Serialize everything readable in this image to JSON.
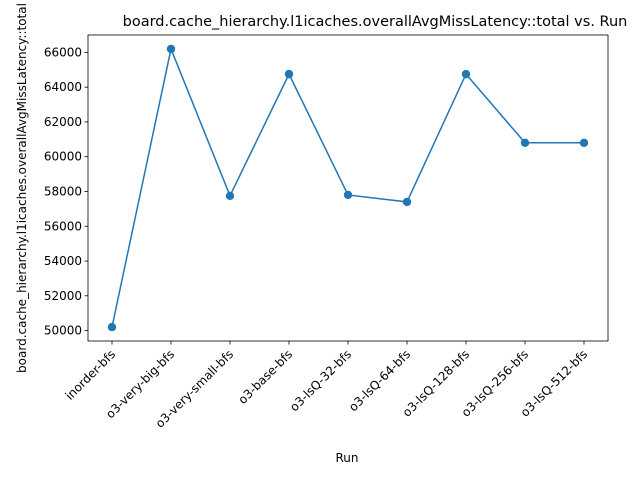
{
  "chart_data": {
    "type": "line",
    "title": "board.cache_hierarchy.l1icaches.overallAvgMissLatency::total vs. Run",
    "xlabel": "Run",
    "ylabel": "board.cache_hierarchy.l1icaches.overallAvgMissLatency::total",
    "categories": [
      "inorder-bfs",
      "o3-very-big-bfs",
      "o3-very-small-bfs",
      "o3-base-bfs",
      "o3-lsQ-32-bfs",
      "o3-lsQ-64-bfs",
      "o3-lsQ-128-bfs",
      "o3-lsQ-256-bfs",
      "o3-lsQ-512-bfs"
    ],
    "series": [
      {
        "values": [
          50200,
          66200,
          57750,
          64750,
          57800,
          57400,
          64750,
          60800,
          60800
        ]
      }
    ],
    "ylim": [
      49400,
      67000
    ],
    "yticks": [
      50000,
      52000,
      54000,
      56000,
      58000,
      60000,
      62000,
      64000,
      66000
    ],
    "grid": false,
    "marker": "circle",
    "line_color": "#1f77b4"
  }
}
